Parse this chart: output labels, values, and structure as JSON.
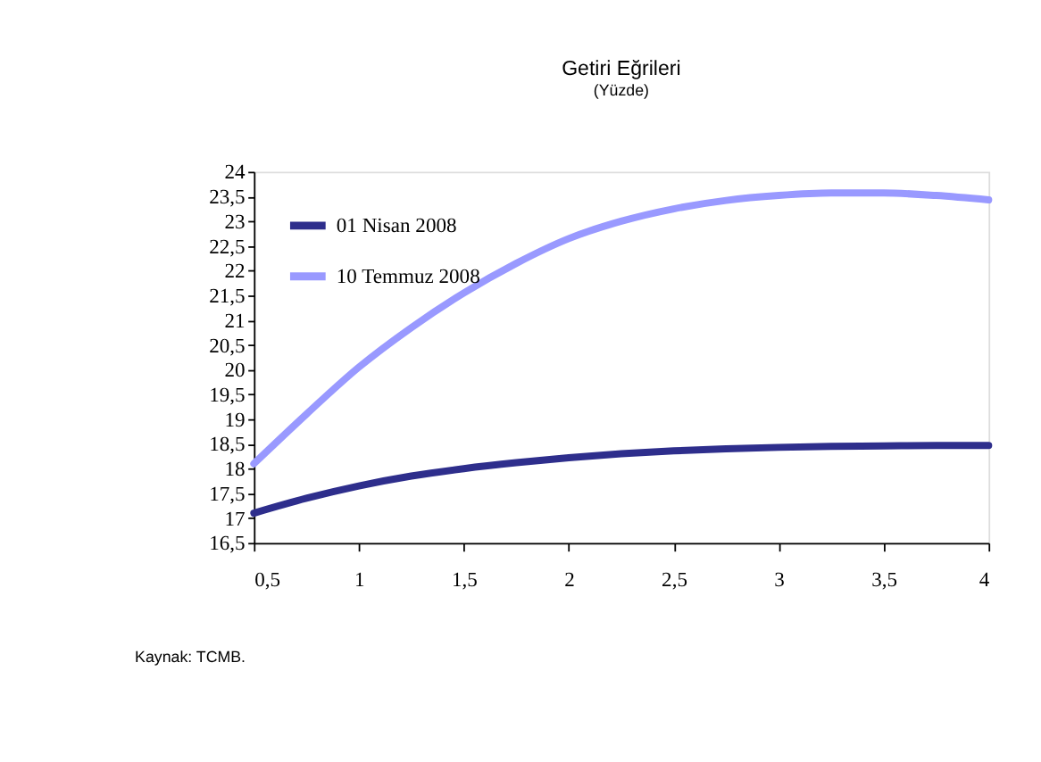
{
  "chart_data": {
    "type": "line",
    "title": "Getiri Eğrileri",
    "subtitle": "(Yüzde)",
    "annotations": [
      "Kaynak: TCMB."
    ],
    "x": [
      0.5,
      0.75,
      1,
      1.25,
      1.5,
      1.75,
      2,
      2.25,
      2.5,
      2.75,
      3,
      3.25,
      3.5,
      3.75,
      4
    ],
    "series": [
      {
        "name": "01 Nisan 2008",
        "color": "#2e2e8c",
        "values": [
          17.1,
          17.4,
          17.65,
          17.85,
          18.0,
          18.12,
          18.22,
          18.3,
          18.36,
          18.4,
          18.43,
          18.45,
          18.46,
          18.47,
          18.47
        ]
      },
      {
        "name": "10 Temmuz 2008",
        "color": "#9999ff",
        "values": [
          18.1,
          19.1,
          20.05,
          20.85,
          21.55,
          22.15,
          22.65,
          23.0,
          23.25,
          23.42,
          23.52,
          23.57,
          23.57,
          23.52,
          23.43
        ]
      }
    ],
    "xlim": [
      0.5,
      4
    ],
    "ylim": [
      16.5,
      24
    ],
    "xticks": [
      {
        "value": 0.5,
        "label": "0,5"
      },
      1,
      {
        "value": 1.5,
        "label": "1,5"
      },
      2,
      {
        "value": 2.5,
        "label": "2,5"
      },
      3,
      {
        "value": 3.5,
        "label": "3,5"
      },
      4
    ],
    "yticks": [
      {
        "value": 16.5,
        "label": "16,5"
      },
      17,
      {
        "value": 17.5,
        "label": "17,5"
      },
      18,
      {
        "value": 18.5,
        "label": "18,5"
      },
      19,
      {
        "value": 19.5,
        "label": "19,5"
      },
      20,
      {
        "value": 20.5,
        "label": "20,5"
      },
      21,
      {
        "value": 21.5,
        "label": "21,5"
      },
      22,
      {
        "value": 22.5,
        "label": "22,5"
      },
      23,
      {
        "value": 23.5,
        "label": "23,5"
      },
      24
    ],
    "grid": false,
    "legend": "top left",
    "marker": "none",
    "line_style": "solid"
  }
}
